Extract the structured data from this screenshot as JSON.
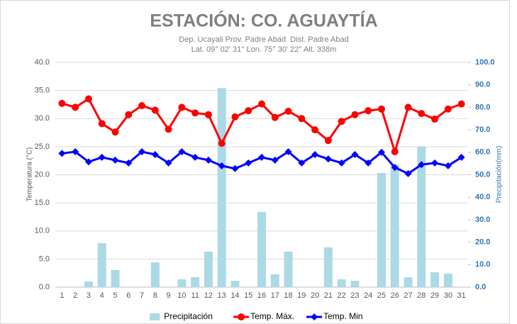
{
  "chart_data": {
    "type": "bar",
    "title": "ESTACIÓN: CO. AGUAYTÍA",
    "subtitle": [
      "Dep. Ucayali Prov. Padre Abad  Dist. Padre Abad",
      "Lat. 09° 02' 31'' Lon. 75° 30' 22'' Alt. 338m"
    ],
    "y_label": "Temperatura (°C)",
    "y2_label": "Precipitación(mm)",
    "categories": [
      "1",
      "2",
      "3",
      "4",
      "5",
      "6",
      "7",
      "8",
      "9",
      "10",
      "11",
      "12",
      "13",
      "14",
      "15",
      "16",
      "17",
      "18",
      "19",
      "20",
      "21",
      "22",
      "23",
      "24",
      "25",
      "26",
      "27",
      "28",
      "29",
      "30",
      "31"
    ],
    "series": [
      {
        "name": "Precipitación",
        "type": "bar",
        "axis": "y2",
        "color": "#abd9e6",
        "values": [
          0,
          0,
          2.5,
          19.6,
          7.6,
          0,
          0,
          11.0,
          0,
          3.5,
          4.4,
          15.8,
          88.6,
          2.8,
          0,
          33.4,
          5.7,
          15.8,
          0,
          0,
          17.7,
          3.5,
          2.8,
          0,
          50.8,
          54.6,
          4.4,
          62.5,
          6.6,
          6.0,
          0
        ]
      },
      {
        "name": "Temp. Máx.",
        "type": "line",
        "marker": "circle",
        "color": "#ff0000",
        "values": [
          32.7,
          32.0,
          33.5,
          29.1,
          27.6,
          30.7,
          32.3,
          31.5,
          28.1,
          32.0,
          31.0,
          30.7,
          25.6,
          30.3,
          31.4,
          32.6,
          30.2,
          31.3,
          30.0,
          28.0,
          26.1,
          29.5,
          30.7,
          31.4,
          31.7,
          24.1,
          32.0,
          30.9,
          29.9,
          31.7,
          32.6
        ]
      },
      {
        "name": "Temp. Min",
        "type": "line",
        "marker": "diamond",
        "color": "#0000ff",
        "values": [
          23.8,
          24.1,
          22.3,
          23.1,
          22.6,
          22.1,
          24.1,
          23.6,
          22.1,
          24.1,
          23.1,
          22.6,
          21.6,
          21.1,
          22.1,
          23.1,
          22.6,
          24.1,
          22.1,
          23.6,
          22.8,
          22.1,
          23.6,
          22.1,
          24.0,
          21.3,
          20.2,
          21.8,
          22.1,
          21.6,
          23.1
        ]
      }
    ],
    "ylim": [
      0,
      40
    ],
    "yticks": [
      {
        "value": 0,
        "label": "0.0"
      },
      {
        "value": 5,
        "label": "5.0"
      },
      {
        "value": 10,
        "label": "10.0"
      },
      {
        "value": 15,
        "label": "15.0"
      },
      {
        "value": 20,
        "label": "20.0"
      },
      {
        "value": 25,
        "label": "25.0"
      },
      {
        "value": 30,
        "label": "30.0"
      },
      {
        "value": 35,
        "label": "35.0"
      },
      {
        "value": 40,
        "label": "40.0"
      }
    ],
    "y2lim": [
      0,
      100
    ],
    "y2ticks": [
      {
        "value": 0,
        "label": "0.0"
      },
      {
        "value": 10,
        "label": "10.0"
      },
      {
        "value": 20,
        "label": "20.0"
      },
      {
        "value": 30,
        "label": "30.0"
      },
      {
        "value": 40,
        "label": "40.0"
      },
      {
        "value": 50,
        "label": "50.0"
      },
      {
        "value": 60,
        "label": "60.0"
      },
      {
        "value": 70,
        "label": "70.0"
      },
      {
        "value": 80,
        "label": "80.0"
      },
      {
        "value": 90,
        "label": "90.0"
      },
      {
        "value": 100,
        "label": "100.0"
      }
    ],
    "grid": true,
    "legend": "bottom"
  }
}
